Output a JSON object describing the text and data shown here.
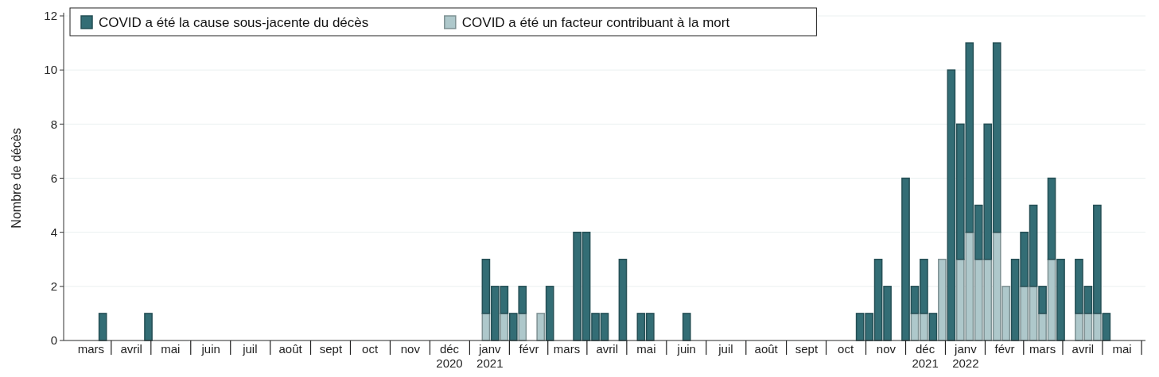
{
  "chart_data": {
    "type": "bar",
    "stacked": true,
    "ylabel": "Nombre de décès",
    "x": [
      "2020-03-25",
      "2020-04-29",
      "2021-01-13",
      "2021-01-20",
      "2021-01-27",
      "2021-02-03",
      "2021-02-10",
      "2021-02-24",
      "2021-03-03",
      "2021-03-24",
      "2021-03-31",
      "2021-04-07",
      "2021-04-14",
      "2021-04-28",
      "2021-05-12",
      "2021-05-19",
      "2021-06-16",
      "2021-10-27",
      "2021-11-03",
      "2021-11-10",
      "2021-11-17",
      "2021-12-01",
      "2021-12-08",
      "2021-12-15",
      "2021-12-22",
      "2021-12-29",
      "2022-01-05",
      "2022-01-12",
      "2022-01-19",
      "2022-01-26",
      "2022-02-02",
      "2022-02-09",
      "2022-02-16",
      "2022-02-23",
      "2022-03-02",
      "2022-03-09",
      "2022-03-16",
      "2022-03-23",
      "2022-03-30",
      "2022-04-13",
      "2022-04-20",
      "2022-04-27",
      "2022-05-04"
    ],
    "series": [
      {
        "name": "COVID a été un facteur contribuant à la mort",
        "color": "#aec8cb",
        "values": [
          null,
          null,
          1,
          null,
          1,
          null,
          1,
          1,
          null,
          null,
          null,
          null,
          null,
          null,
          null,
          null,
          null,
          null,
          null,
          null,
          null,
          null,
          1,
          1,
          null,
          3,
          null,
          3,
          4,
          3,
          3,
          4,
          2,
          null,
          2,
          2,
          1,
          3,
          null,
          1,
          1,
          1,
          null
        ]
      },
      {
        "name": "COVID a été la cause sous-jacente du décès",
        "color": "#336d75",
        "values": [
          1,
          1,
          2,
          2,
          1,
          1,
          1,
          null,
          2,
          4,
          4,
          1,
          1,
          3,
          1,
          1,
          1,
          1,
          1,
          3,
          2,
          6,
          1,
          2,
          1,
          null,
          10,
          5,
          7,
          2,
          5,
          7,
          null,
          3,
          2,
          3,
          1,
          3,
          3,
          2,
          1,
          4,
          1
        ]
      }
    ],
    "xlim": [
      "2020-02-24",
      "2022-06-03"
    ],
    "xticks": [
      {
        "value": "2020-03-16",
        "label": "mars"
      },
      {
        "value": "2020-04-16",
        "label": "avril"
      },
      {
        "value": "2020-05-16",
        "label": "mai"
      },
      {
        "value": "2020-06-16",
        "label": "juin"
      },
      {
        "value": "2020-07-16",
        "label": "juil"
      },
      {
        "value": "2020-08-16",
        "label": "août"
      },
      {
        "value": "2020-09-16",
        "label": "sept"
      },
      {
        "value": "2020-10-16",
        "label": "oct"
      },
      {
        "value": "2020-11-16",
        "label": "nov"
      },
      {
        "value": "2020-12-16",
        "label": "déc\n2020"
      },
      {
        "value": "2021-01-16",
        "label": "janv\n2021"
      },
      {
        "value": "2021-02-15",
        "label": "févr"
      },
      {
        "value": "2021-03-16",
        "label": "mars"
      },
      {
        "value": "2021-04-16",
        "label": "avril"
      },
      {
        "value": "2021-05-16",
        "label": "mai"
      },
      {
        "value": "2021-06-16",
        "label": "juin"
      },
      {
        "value": "2021-07-16",
        "label": "juil"
      },
      {
        "value": "2021-08-16",
        "label": "août"
      },
      {
        "value": "2021-09-16",
        "label": "sept"
      },
      {
        "value": "2021-10-16",
        "label": "oct"
      },
      {
        "value": "2021-11-16",
        "label": "nov"
      },
      {
        "value": "2021-12-16",
        "label": "déc\n2021"
      },
      {
        "value": "2022-01-16",
        "label": "janv\n2022"
      },
      {
        "value": "2022-02-15",
        "label": "févr"
      },
      {
        "value": "2022-03-16",
        "label": "mars"
      },
      {
        "value": "2022-04-16",
        "label": "avril"
      },
      {
        "value": "2022-05-16",
        "label": "mai"
      }
    ],
    "ylim": [
      0,
      12
    ],
    "yticks": [
      0,
      2,
      4,
      6,
      8,
      10,
      12
    ],
    "grid": "y",
    "legend": "top left"
  }
}
